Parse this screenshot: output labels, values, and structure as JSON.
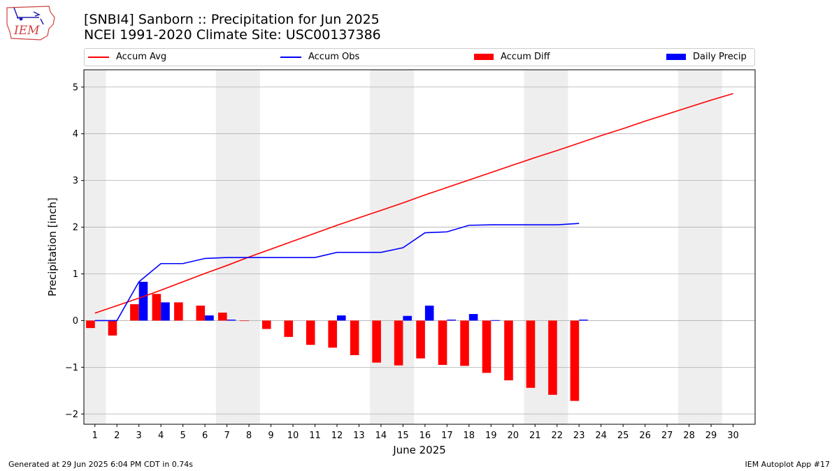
{
  "header": {
    "title_line1": "[SNBI4] Sanborn :: Precipitation for Jun 2025",
    "title_line2": "NCEI 1991-2020 Climate Site: USC00137386",
    "logo_text": "IEM"
  },
  "footer": {
    "left": "Generated at 29 Jun 2025 6:04 PM CDT in 0.74s",
    "right": "IEM Autoplot App #17"
  },
  "legend": {
    "accum_avg": "Accum Avg",
    "accum_obs": "Accum Obs",
    "accum_diff": "Accum Diff",
    "daily_precip": "Daily Precip"
  },
  "colors": {
    "accum_avg": "#ff0000",
    "accum_obs": "#0000ff",
    "accum_diff": "#ff0000",
    "daily_precip": "#0000ff",
    "weekend_shade": "#eeeeee",
    "grid": "#b0b0b0"
  },
  "chart_data": {
    "type": "bar",
    "xlabel": "June 2025",
    "ylabel": "Precipitation [inch]",
    "ylim": [
      -2.22,
      5.37
    ],
    "xlim": [
      0.5,
      31.0
    ],
    "y_ticks": [
      -2,
      -1,
      0,
      1,
      2,
      3,
      4,
      5
    ],
    "y_tick_labels": [
      "−2",
      "−1",
      "0",
      "1",
      "2",
      "3",
      "4",
      "5"
    ],
    "x_ticks": [
      1,
      2,
      3,
      4,
      5,
      6,
      7,
      8,
      9,
      10,
      11,
      12,
      13,
      14,
      15,
      16,
      17,
      18,
      19,
      20,
      21,
      22,
      23,
      24,
      25,
      26,
      27,
      28,
      29,
      30
    ],
    "x_tick_labels": [
      "1",
      "2",
      "3",
      "4",
      "5",
      "6",
      "7",
      "8",
      "9",
      "10",
      "11",
      "12",
      "13",
      "14",
      "15",
      "16",
      "17",
      "18",
      "19",
      "20",
      "21",
      "22",
      "23",
      "24",
      "25",
      "26",
      "27",
      "28",
      "29",
      "30"
    ],
    "grid": "horizontal",
    "legend_position": "top",
    "weekend_spans": [
      [
        0.5,
        1.5
      ],
      [
        6.5,
        8.5
      ],
      [
        13.5,
        15.5
      ],
      [
        20.5,
        22.5
      ],
      [
        27.5,
        29.5
      ]
    ],
    "series": [
      {
        "name": "Accum Avg",
        "kind": "line",
        "x": [
          1,
          2,
          3,
          4,
          5,
          6,
          7,
          8,
          9,
          10,
          11,
          12,
          13,
          14,
          15,
          16,
          17,
          18,
          19,
          20,
          21,
          22,
          23,
          24,
          25,
          26,
          27,
          28,
          29,
          30
        ],
        "values": [
          0.16,
          0.32,
          0.48,
          0.65,
          0.83,
          1.01,
          1.18,
          1.36,
          1.53,
          1.7,
          1.87,
          2.04,
          2.2,
          2.36,
          2.52,
          2.69,
          2.85,
          3.01,
          3.17,
          3.33,
          3.49,
          3.64,
          3.8,
          3.96,
          4.11,
          4.27,
          4.42,
          4.57,
          4.72,
          4.86
        ]
      },
      {
        "name": "Accum Obs",
        "kind": "line",
        "x": [
          1,
          2,
          3,
          4,
          5,
          6,
          7,
          8,
          9,
          10,
          11,
          12,
          13,
          14,
          15,
          16,
          17,
          18,
          19,
          20,
          21,
          22,
          23
        ],
        "values": [
          0.0,
          0.0,
          0.83,
          1.22,
          1.22,
          1.33,
          1.35,
          1.35,
          1.35,
          1.35,
          1.35,
          1.46,
          1.46,
          1.46,
          1.56,
          1.88,
          1.9,
          2.04,
          2.05,
          2.05,
          2.05,
          2.05,
          2.08
        ]
      },
      {
        "name": "Accum Diff",
        "kind": "bar",
        "x": [
          1,
          2,
          3,
          4,
          5,
          6,
          7,
          8,
          9,
          10,
          11,
          12,
          13,
          14,
          15,
          16,
          17,
          18,
          19,
          20,
          21,
          22,
          23
        ],
        "values": [
          -0.16,
          -0.32,
          0.35,
          0.57,
          0.39,
          0.32,
          0.17,
          -0.01,
          -0.18,
          -0.35,
          -0.52,
          -0.58,
          -0.74,
          -0.9,
          -0.96,
          -0.81,
          -0.95,
          -0.97,
          -1.12,
          -1.28,
          -1.44,
          -1.59,
          -1.72
        ]
      },
      {
        "name": "Daily Precip",
        "kind": "bar",
        "x": [
          1,
          2,
          3,
          4,
          5,
          6,
          7,
          8,
          9,
          10,
          11,
          12,
          13,
          14,
          15,
          16,
          17,
          18,
          19,
          20,
          21,
          22,
          23
        ],
        "values": [
          0.0,
          0.0,
          0.83,
          0.39,
          0.0,
          0.11,
          0.02,
          0.0,
          0.0,
          0.0,
          0.0,
          0.11,
          0.0,
          0.0,
          0.1,
          0.32,
          0.02,
          0.14,
          0.01,
          0.0,
          0.0,
          0.0,
          0.02
        ]
      }
    ]
  }
}
